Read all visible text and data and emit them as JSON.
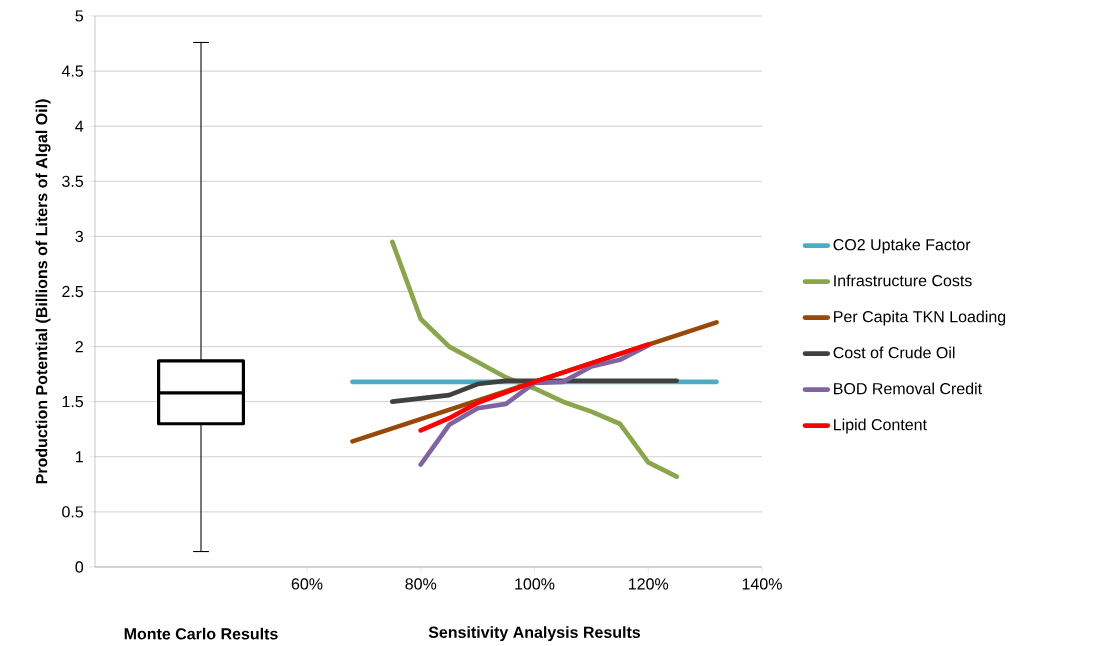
{
  "chart_data": [
    {
      "type": "box",
      "ylabel": "Production  Potential  (Billions of Liters of Algal Oil)",
      "xlabel": "Monte Carlo Results",
      "categories": [
        null
      ],
      "boxes": [
        {
          "low": 0.14,
          "q1": 1.3,
          "median": 1.58,
          "q3": 1.87,
          "high": 4.76
        }
      ],
      "color": "#000000",
      "ylim": [
        0,
        5
      ],
      "yticks": [
        0,
        0.5,
        1,
        1.5,
        2,
        2.5,
        3,
        3.5,
        4,
        4.5,
        5
      ],
      "grid": "y"
    },
    {
      "type": "line",
      "xlabel": "Sensitivity  Analysis  Results",
      "series": [
        {
          "name": "CO2 Uptake Factor",
          "color": "#4bacc6",
          "x": [
            68,
            132
          ],
          "values": [
            1.68,
            1.68
          ]
        },
        {
          "name": "Infrastructure Costs",
          "color": "#8aa64d",
          "x": [
            75,
            80,
            85,
            90,
            95,
            100,
            105,
            110,
            115,
            120,
            125
          ],
          "values": [
            2.95,
            2.25,
            2.0,
            1.86,
            1.72,
            1.62,
            1.5,
            1.41,
            1.3,
            0.95,
            0.82
          ]
        },
        {
          "name": "Per Capita TKN Loading",
          "color": "#984807",
          "x": [
            68,
            100,
            132
          ],
          "values": [
            1.14,
            1.68,
            2.22
          ]
        },
        {
          "name": "Cost of Crude Oil",
          "color": "#404040",
          "x": [
            75,
            80,
            85,
            90,
            95,
            100,
            125
          ],
          "values": [
            1.5,
            1.53,
            1.56,
            1.66,
            1.69,
            1.69,
            1.69
          ]
        },
        {
          "name": "BOD Removal Credit",
          "color": "#8064a2",
          "x": [
            80,
            85,
            90,
            95,
            100,
            105,
            110,
            115,
            120
          ],
          "values": [
            0.93,
            1.29,
            1.44,
            1.48,
            1.67,
            1.68,
            1.82,
            1.88,
            2.01
          ]
        },
        {
          "name": "Lipid Content",
          "color": "#ff0000",
          "x": [
            80,
            85,
            90,
            100,
            110,
            120
          ],
          "values": [
            1.24,
            1.35,
            1.49,
            1.68,
            1.85,
            2.02
          ]
        }
      ],
      "xlim": [
        60,
        140
      ],
      "xticks": [
        {
          "value": 60,
          "label": "60%"
        },
        {
          "value": 80,
          "label": "80%"
        },
        {
          "value": 100,
          "label": "100%"
        },
        {
          "value": 120,
          "label": "120%"
        },
        {
          "value": 140,
          "label": "140%"
        }
      ],
      "ylim": [
        0,
        5
      ],
      "yticks": [
        0,
        0.5,
        1,
        1.5,
        2,
        2.5,
        3,
        3.5,
        4,
        4.5,
        5
      ],
      "tick_labels": "x",
      "grid": "y",
      "legend": "right"
    }
  ]
}
